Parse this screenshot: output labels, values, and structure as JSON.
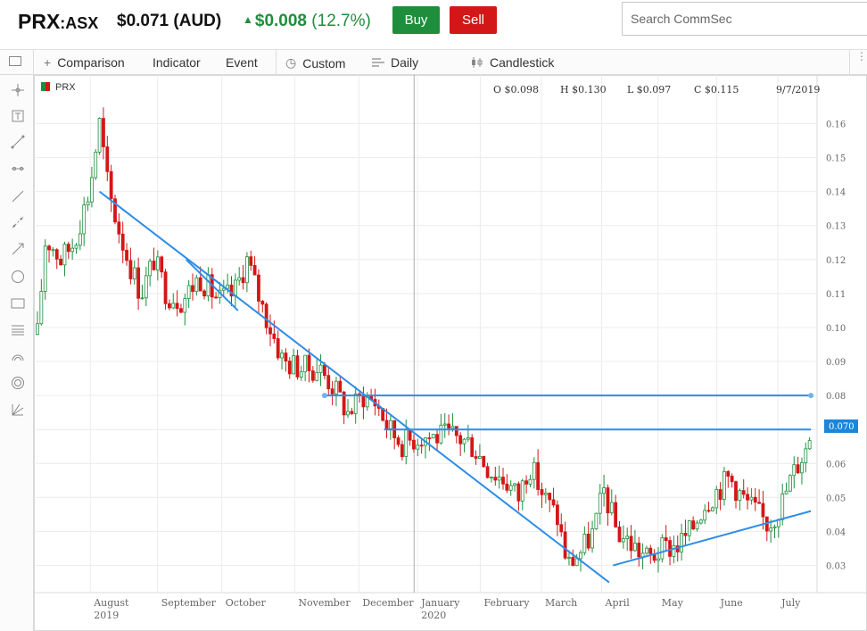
{
  "header": {
    "symbol": "PRX",
    "exchange": ":ASX",
    "price": "$0.071 (AUD)",
    "change_amount": "$0.008",
    "change_percent": "(12.7%)",
    "change_icon": "up-triangle",
    "buy_label": "Buy",
    "sell_label": "Sell",
    "search_placeholder": "Search CommSec",
    "colors": {
      "up": "#1f8e3c",
      "sell": "#d31717"
    }
  },
  "toolbar": {
    "comparison": "Comparison",
    "indicator": "Indicator",
    "event": "Event",
    "custom": "Custom",
    "daily": "Daily",
    "candlestick": "Candlestick"
  },
  "left_tools": [
    "crosshair-icon",
    "text-icon",
    "line-icon",
    "horizontal-line-icon",
    "ray-icon",
    "channel-icon",
    "arrow-icon",
    "circle-icon",
    "rectangle-icon",
    "fibonacci-icon",
    "arc-icon",
    "spiral-icon",
    "gann-icon"
  ],
  "chart_data": {
    "type": "candlestick",
    "series_name": "PRX",
    "ohlc_label": {
      "open": "O $0.098",
      "high": "H $0.130",
      "low": "L $0.097",
      "close": "C $0.115",
      "date": "9/7/2019"
    },
    "last_price_tag": "0.070",
    "y_ticks": [
      "0.16",
      "0.15",
      "0.14",
      "0.13",
      "0.12",
      "0.11",
      "0.10",
      "0.09",
      "0.08",
      "0.07",
      "0.06",
      "0.05",
      "0.04",
      "0.03"
    ],
    "ylim": [
      0.022,
      0.168
    ],
    "x_ticks": [
      {
        "label": "August",
        "sub": "2019"
      },
      {
        "label": "September",
        "sub": ""
      },
      {
        "label": "October",
        "sub": ""
      },
      {
        "label": "November",
        "sub": ""
      },
      {
        "label": "December",
        "sub": ""
      },
      {
        "label": "January",
        "sub": "2020"
      },
      {
        "label": "February",
        "sub": ""
      },
      {
        "label": "March",
        "sub": ""
      },
      {
        "label": "April",
        "sub": ""
      },
      {
        "label": "May",
        "sub": ""
      },
      {
        "label": "June",
        "sub": ""
      },
      {
        "label": "July",
        "sub": ""
      }
    ],
    "price_path": [
      [
        0.098,
        0
      ],
      [
        0.125,
        6
      ],
      [
        0.125,
        10
      ],
      [
        0.12,
        18
      ],
      [
        0.125,
        28
      ],
      [
        0.14,
        40
      ],
      [
        0.16,
        48
      ],
      [
        0.14,
        55
      ],
      [
        0.13,
        62
      ],
      [
        0.12,
        70
      ],
      [
        0.11,
        80
      ],
      [
        0.12,
        90
      ],
      [
        0.11,
        100
      ],
      [
        0.108,
        112
      ],
      [
        0.115,
        125
      ],
      [
        0.108,
        140
      ],
      [
        0.11,
        152
      ],
      [
        0.12,
        162
      ],
      [
        0.108,
        172
      ],
      [
        0.1,
        180
      ],
      [
        0.09,
        190
      ],
      [
        0.088,
        205
      ],
      [
        0.088,
        218
      ],
      [
        0.083,
        228
      ],
      [
        0.075,
        240
      ],
      [
        0.08,
        252
      ],
      [
        0.078,
        262
      ],
      [
        0.07,
        272
      ],
      [
        0.066,
        282
      ],
      [
        0.068,
        295
      ],
      [
        0.068,
        310
      ],
      [
        0.068,
        322
      ],
      [
        0.066,
        335
      ],
      [
        0.058,
        350
      ],
      [
        0.055,
        362
      ],
      [
        0.05,
        372
      ],
      [
        0.06,
        380
      ],
      [
        0.05,
        392
      ],
      [
        0.044,
        402
      ],
      [
        0.03,
        410
      ],
      [
        0.034,
        420
      ],
      [
        0.04,
        430
      ],
      [
        0.052,
        438
      ],
      [
        0.04,
        448
      ],
      [
        0.036,
        460
      ],
      [
        0.032,
        472
      ],
      [
        0.035,
        485
      ],
      [
        0.036,
        495
      ],
      [
        0.04,
        505
      ],
      [
        0.048,
        515
      ],
      [
        0.052,
        525
      ],
      [
        0.056,
        535
      ],
      [
        0.05,
        545
      ],
      [
        0.046,
        555
      ],
      [
        0.042,
        565
      ],
      [
        0.048,
        575
      ],
      [
        0.055,
        582
      ],
      [
        0.06,
        588
      ],
      [
        0.065,
        595
      ],
      [
        0.07,
        598
      ]
    ],
    "trendlines": [
      {
        "name": "down-trendline-long",
        "from": {
          "i": 48,
          "p": 0.14
        },
        "to": {
          "i": 442,
          "p": 0.025
        }
      },
      {
        "name": "down-trendline-short",
        "from": {
          "i": 115,
          "p": 0.12
        },
        "to": {
          "i": 155,
          "p": 0.105
        }
      },
      {
        "name": "resistance-080",
        "from": {
          "i": 222,
          "p": 0.08
        },
        "to": {
          "i": 598,
          "p": 0.08
        }
      },
      {
        "name": "resistance-070",
        "from": {
          "i": 268,
          "p": 0.07
        },
        "to": {
          "i": 598,
          "p": 0.07
        }
      },
      {
        "name": "up-trendline",
        "from": {
          "i": 445,
          "p": 0.03
        },
        "to": {
          "i": 598,
          "p": 0.046
        }
      }
    ]
  }
}
